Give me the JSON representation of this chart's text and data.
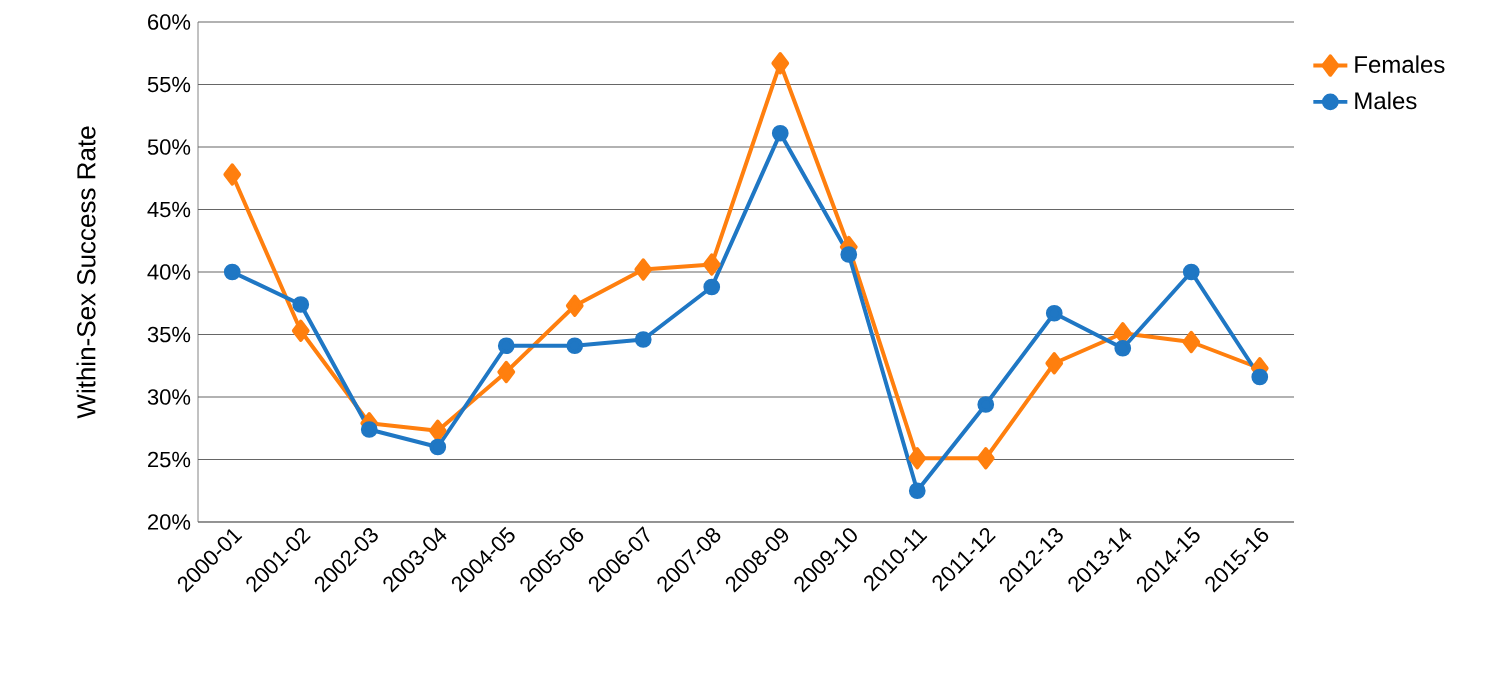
{
  "chart_data": {
    "type": "line",
    "ylabel": "Within-Sex Success Rate",
    "categories": [
      "2000-01",
      "2001-02",
      "2002-03",
      "2003-04",
      "2004-05",
      "2005-06",
      "2006-07",
      "2007-08",
      "2008-09",
      "2009-10",
      "2010-11",
      "2011-12",
      "2012-13",
      "2013-14",
      "2014-15",
      "2015-16"
    ],
    "series": [
      {
        "name": "Females",
        "color": "#ff7f0e",
        "marker": "diamond",
        "values": [
          47.8,
          35.3,
          27.9,
          27.3,
          32.0,
          37.3,
          40.2,
          40.6,
          56.7,
          42.0,
          25.1,
          25.1,
          32.7,
          35.1,
          34.4,
          32.3
        ]
      },
      {
        "name": "Males",
        "color": "#1f77c4",
        "marker": "circle",
        "values": [
          40.0,
          37.4,
          27.4,
          26.0,
          34.1,
          34.1,
          34.6,
          38.8,
          51.1,
          41.4,
          22.5,
          29.4,
          36.7,
          33.9,
          40.0,
          31.6
        ]
      }
    ],
    "ylim": [
      20,
      60
    ],
    "yticks": [
      {
        "value": 20,
        "label": "20%"
      },
      {
        "value": 25,
        "label": "25%"
      },
      {
        "value": 30,
        "label": "30%"
      },
      {
        "value": 35,
        "label": "35%"
      },
      {
        "value": 40,
        "label": "40%"
      },
      {
        "value": 45,
        "label": "45%"
      },
      {
        "value": 50,
        "label": "50%"
      },
      {
        "value": 55,
        "label": "55%"
      },
      {
        "value": 60,
        "label": "60%"
      }
    ],
    "grid": "y",
    "legend": "right",
    "line_style": "solid"
  }
}
